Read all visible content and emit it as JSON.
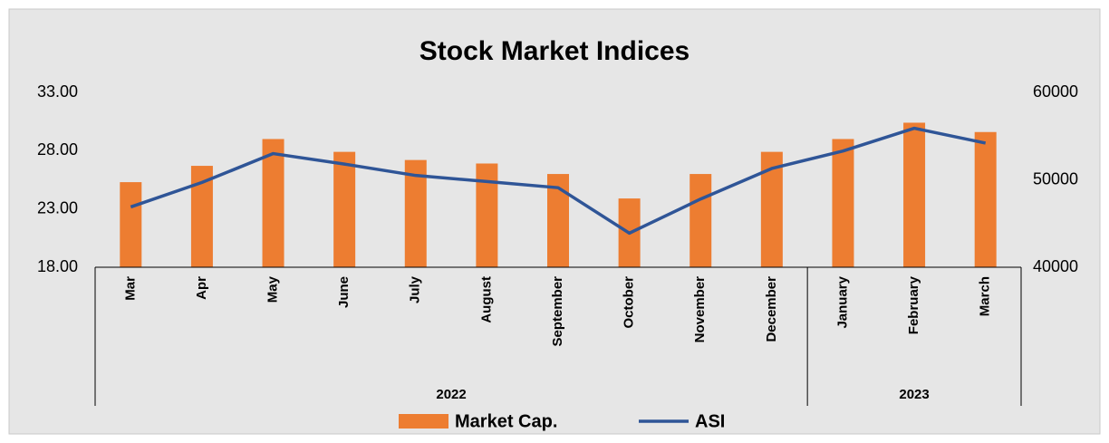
{
  "chart_data": {
    "type": "bar_line",
    "title": "Stock Market Indices",
    "categories": [
      "Mar",
      "Apr",
      "May",
      "June",
      "July",
      "August",
      "September",
      "October",
      "November",
      "December",
      "January",
      "February",
      "March"
    ],
    "category_groups": [
      "2022",
      "2022",
      "2022",
      "2022",
      "2022",
      "2022",
      "2022",
      "2022",
      "2022",
      "2022",
      "2023",
      "2023",
      "2023"
    ],
    "series": [
      {
        "name": "Market Cap.",
        "type": "bar",
        "color": "#ed7d31",
        "values": [
          25.3,
          26.7,
          29.0,
          27.9,
          27.2,
          26.9,
          26.0,
          23.9,
          26.0,
          27.9,
          29.0,
          30.4,
          29.6
        ]
      },
      {
        "name": "ASI",
        "type": "line",
        "color": "#2f5597",
        "axis": "y2",
        "values": [
          46900,
          49700,
          53000,
          51800,
          50500,
          49800,
          49100,
          43900,
          47800,
          51300,
          53300,
          55900,
          54200
        ]
      }
    ],
    "ylim": [
      18,
      33
    ],
    "yticks": [
      {
        "value": 18,
        "label": "18.00"
      },
      {
        "value": 23,
        "label": "23.00"
      },
      {
        "value": 28,
        "label": "28.00"
      },
      {
        "value": 33,
        "label": "33.00"
      }
    ],
    "y2lim": [
      40000,
      60000
    ],
    "y2ticks": [
      40000,
      50000,
      60000
    ],
    "legend": "bottom"
  }
}
